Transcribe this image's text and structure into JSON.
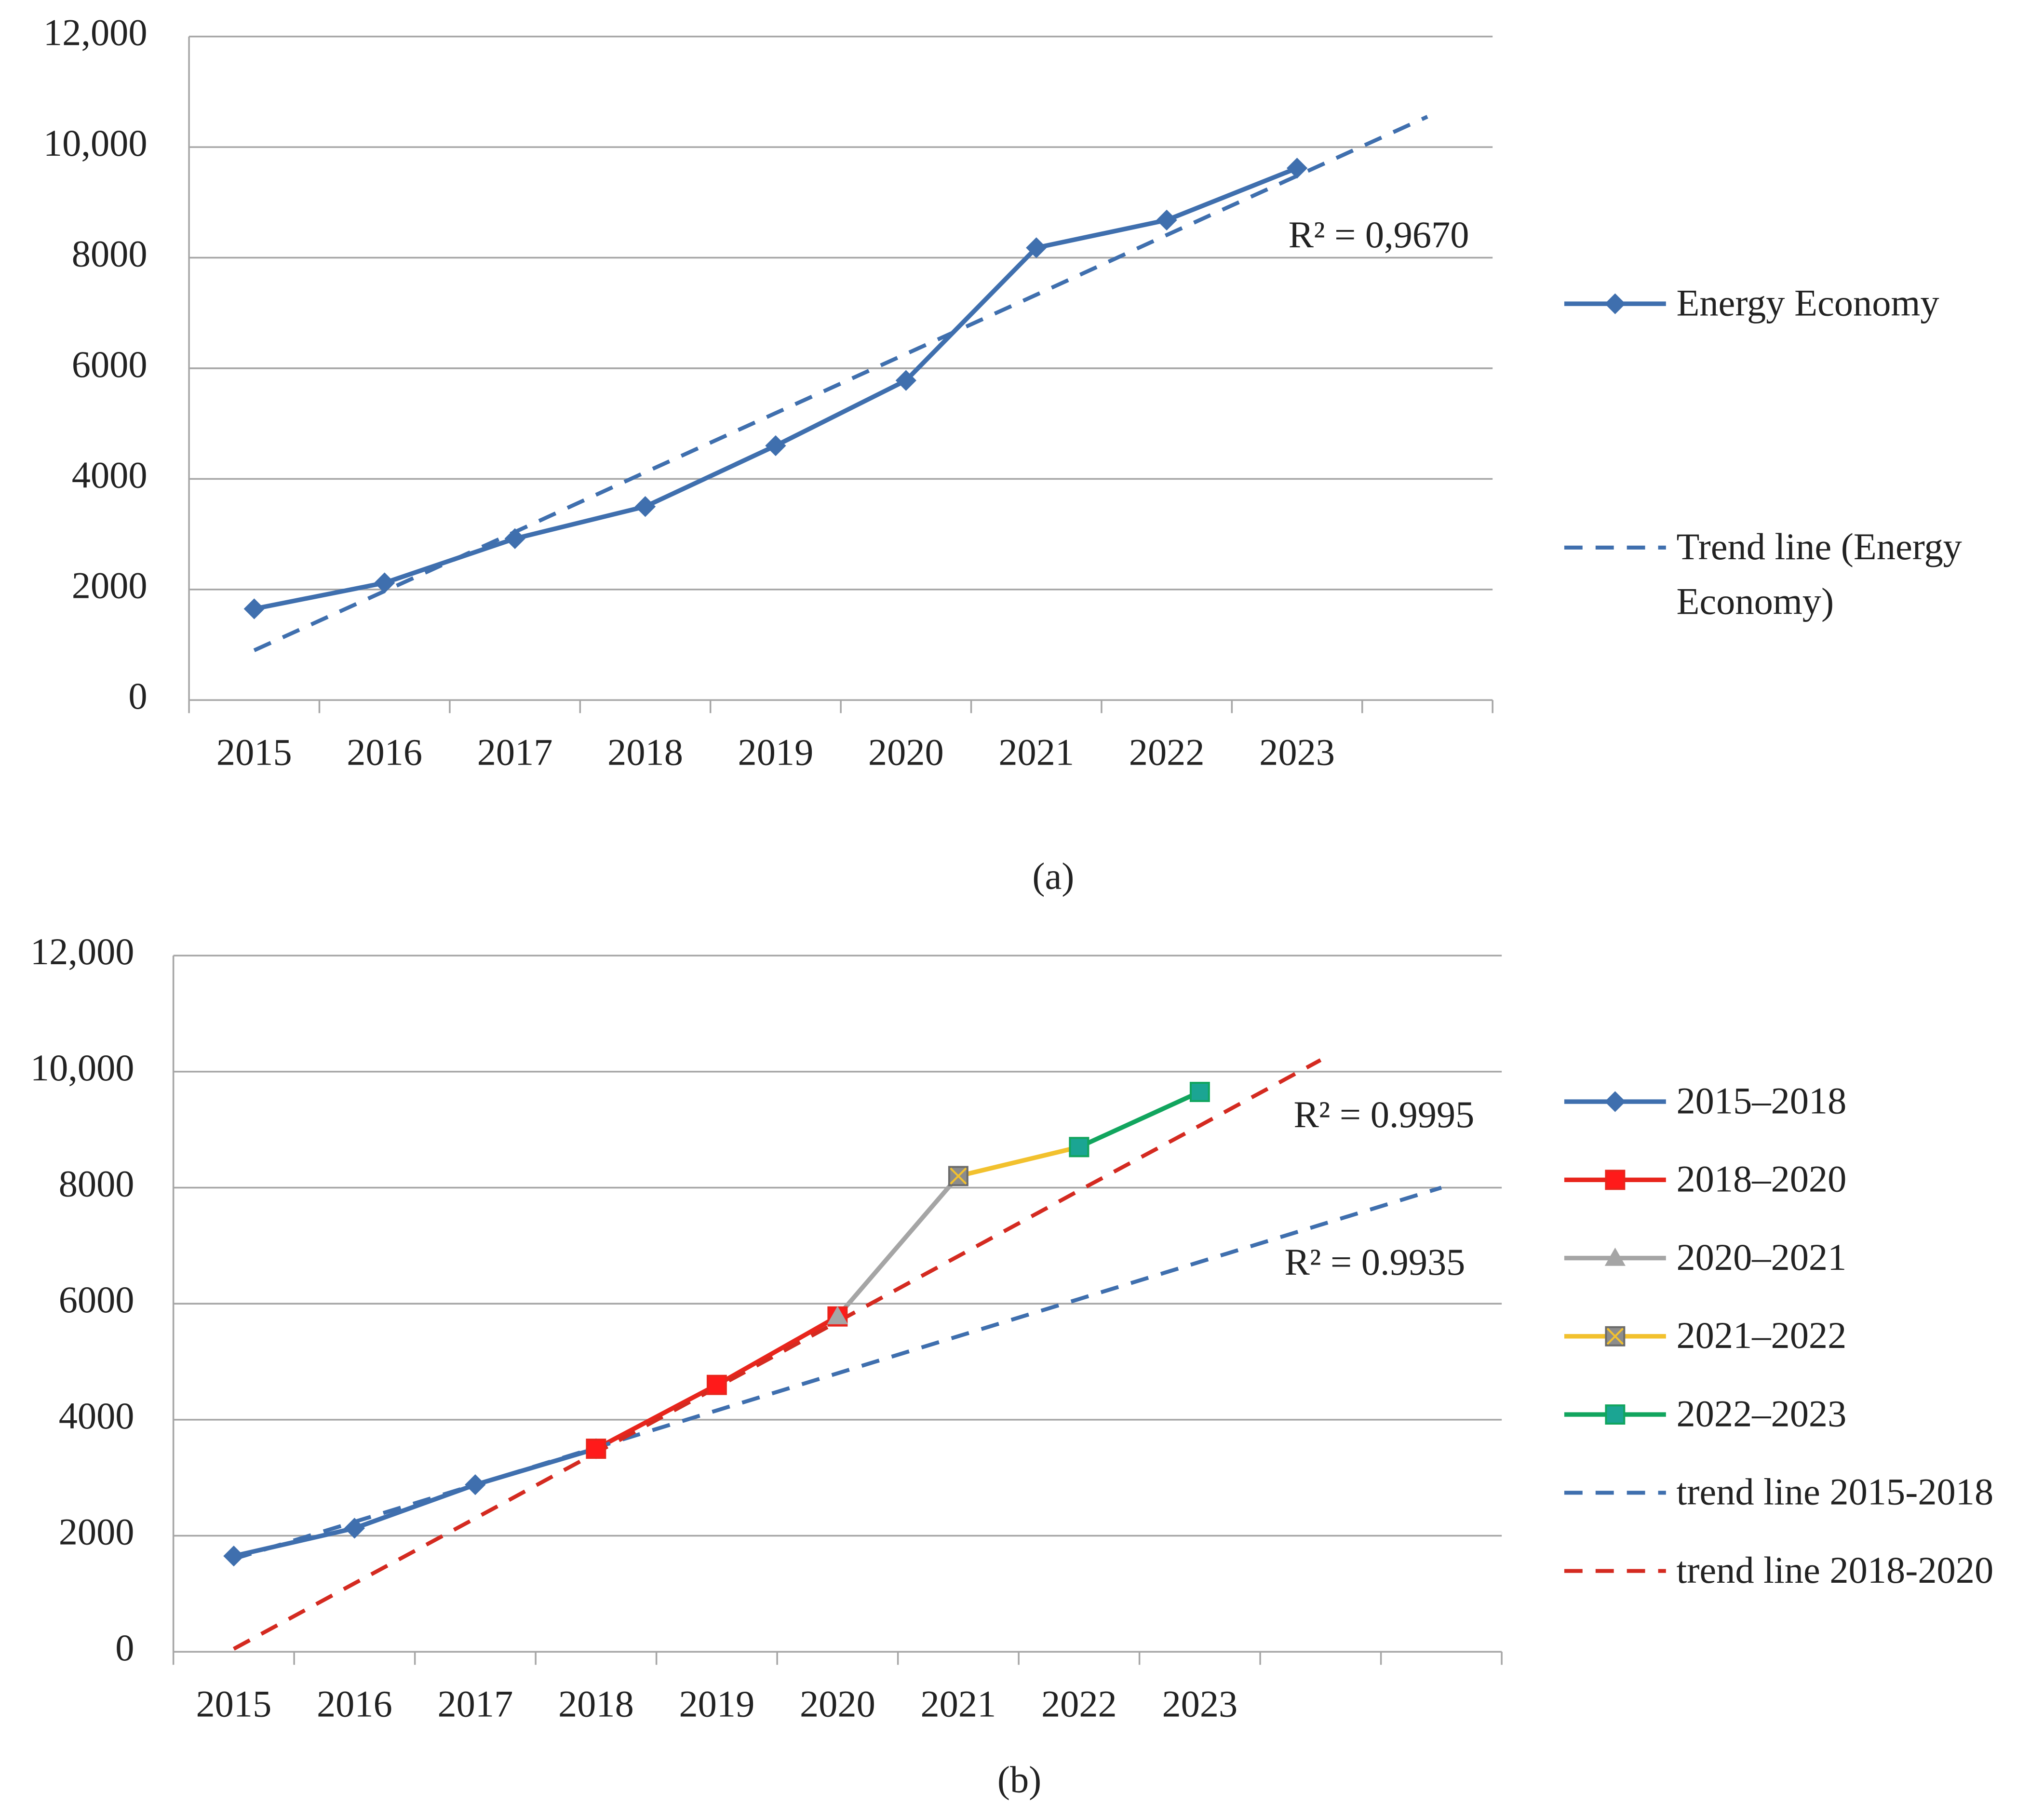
{
  "chart_data": [
    {
      "type": "line",
      "caption": "(a)",
      "categories": [
        "2015",
        "2016",
        "2017",
        "2018",
        "2019",
        "2020",
        "2021",
        "2022",
        "2023",
        null
      ],
      "ylim": [
        0,
        12000
      ],
      "yticks": [
        0,
        2000,
        4000,
        6000,
        8000,
        {
          "value": 10000,
          "label": "10,000"
        },
        {
          "value": 12000,
          "label": "12,000"
        }
      ],
      "grid": true,
      "legend": "right",
      "series": [
        {
          "name": "Energy Economy",
          "color": "#3f6fae",
          "marker": "diamond",
          "marker_color": "#3f6fae",
          "dashed": false,
          "values": [
            1650,
            2120,
            2920,
            3500,
            4600,
            5780,
            8180,
            8680,
            9620,
            null
          ]
        },
        {
          "name": "Trend line (Energy Economy)",
          "color": "#3f6fae",
          "marker": "none",
          "dashed": true,
          "values": [
            900,
            1970,
            3040,
            4120,
            5190,
            6260,
            7330,
            8410,
            9480,
            10550
          ]
        }
      ],
      "annotations": [
        "R² = 0,9670"
      ]
    },
    {
      "type": "line",
      "caption": "(b)",
      "categories": [
        "2015",
        "2016",
        "2017",
        "2018",
        "2019",
        "2020",
        "2021",
        "2022",
        "2023",
        null,
        null
      ],
      "ylim": [
        0,
        12000
      ],
      "yticks": [
        0,
        2000,
        4000,
        6000,
        8000,
        {
          "value": 10000,
          "label": "10,000"
        },
        {
          "value": 12000,
          "label": "12,000"
        }
      ],
      "grid": true,
      "legend": "right",
      "series": [
        {
          "name": "2015–2018",
          "color": "#3f6fae",
          "marker": "diamond",
          "marker_color": "#3f6fae",
          "dashed": false,
          "values": [
            1650,
            2130,
            2880,
            3500,
            null,
            null,
            null,
            null,
            null,
            null,
            null
          ]
        },
        {
          "name": "2018–2020",
          "color": "#e8251c",
          "marker": "square",
          "marker_color": "#ff1a1a",
          "dashed": false,
          "values": [
            null,
            null,
            null,
            3500,
            4600,
            5780,
            null,
            null,
            null,
            null,
            null
          ]
        },
        {
          "name": "2020–2021",
          "color": "#a5a5a5",
          "marker": "triangle",
          "marker_color": "#a5a5a5",
          "dashed": false,
          "values": [
            null,
            null,
            null,
            null,
            null,
            5780,
            8200,
            null,
            null,
            null,
            null
          ]
        },
        {
          "name": "2021–2022",
          "color": "#f2c12e",
          "marker": "square-x",
          "marker_color": "#8c8c8c",
          "dashed": false,
          "values": [
            null,
            null,
            null,
            null,
            null,
            null,
            8200,
            8700,
            null,
            null,
            null
          ]
        },
        {
          "name": "2022–2023",
          "color": "#11a55e",
          "marker": "square",
          "marker_color": "#1ba593",
          "dashed": false,
          "values": [
            null,
            null,
            null,
            null,
            null,
            null,
            null,
            8700,
            9650,
            null,
            null
          ]
        },
        {
          "name": "trend line 2015-2018",
          "color": "#3f6fae",
          "marker": "none",
          "dashed": true,
          "values": [
            1600,
            2240,
            2880,
            3520,
            4160,
            4800,
            5440,
            6080,
            6720,
            7360,
            8000
          ]
        },
        {
          "name": "trend line 2018-2020",
          "color": "#d42a20",
          "marker": "none",
          "dashed": true,
          "values": [
            50,
            1180,
            2300,
            3430,
            4560,
            5690,
            6820,
            7950,
            9070,
            10200,
            null
          ]
        }
      ],
      "annotations": [
        "R² = 0.9995",
        "R² = 0.9935"
      ]
    }
  ]
}
